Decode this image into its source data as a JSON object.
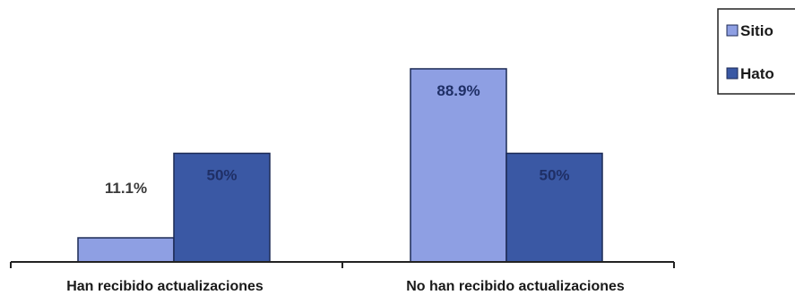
{
  "chart_data": {
    "type": "bar",
    "categories": [
      "Han recibido actualizaciones",
      "No han recibido actualizaciones"
    ],
    "series": [
      {
        "name": "Sitio",
        "values": [
          11.1,
          88.9
        ],
        "labels": [
          "11.1%",
          "88.9%"
        ],
        "color": "#8e9fe3"
      },
      {
        "name": "Hato",
        "values": [
          50,
          50
        ],
        "labels": [
          "50%",
          "50%"
        ],
        "color": "#3a58a4"
      }
    ],
    "ylim": [
      0,
      100
    ],
    "grid": false,
    "legend": "top-right"
  }
}
